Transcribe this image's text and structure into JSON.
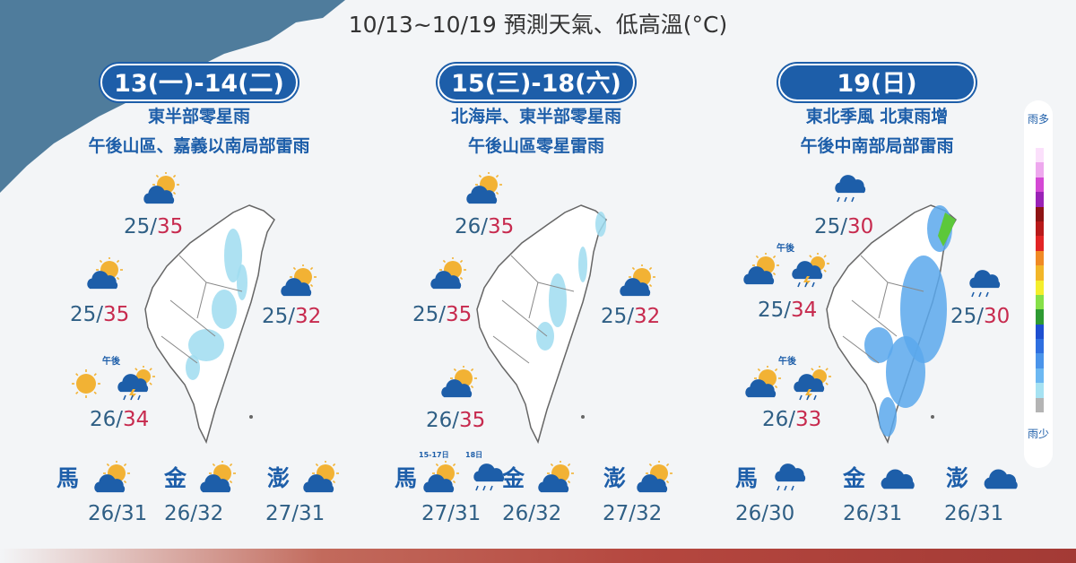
{
  "title": "10/13~10/19 預測天氣、低高溫(°C)",
  "colors": {
    "accent": "#1d5ea9",
    "low_temp": "#2f5f85",
    "high_temp": "#c72a4e"
  },
  "panels": [
    {
      "date": "13(一)-14(二)",
      "lines": [
        "東半部零星雨",
        "午後山區、嘉義以南局部雷雨"
      ],
      "spots": [
        {
          "icons": [
            "sun-cloud-icon"
          ],
          "low": "25",
          "high": "35"
        },
        {
          "icons": [
            "sun-cloud-icon"
          ],
          "low": "25",
          "high": "35"
        },
        {
          "icons": [
            "sun-cloud-icon"
          ],
          "low": "25",
          "high": "32"
        },
        {
          "icons": [
            "sun-icon",
            "thunderstorm-sun-icon"
          ],
          "note": "午後",
          "low": "26",
          "high": "34"
        }
      ],
      "islands": [
        {
          "name": "馬",
          "icons": [
            "sun-cloud-icon"
          ],
          "low": "26",
          "high": "31"
        },
        {
          "name": "金",
          "icons": [
            "sun-cloud-icon"
          ],
          "low": "26",
          "high": "32"
        },
        {
          "name": "澎",
          "icons": [
            "sun-cloud-icon"
          ],
          "low": "27",
          "high": "31"
        }
      ]
    },
    {
      "date": "15(三)-18(六)",
      "lines": [
        "北海岸、東半部零星雨",
        "午後山區零星雷雨"
      ],
      "spots": [
        {
          "icons": [
            "sun-cloud-icon"
          ],
          "low": "26",
          "high": "35"
        },
        {
          "icons": [
            "sun-cloud-icon"
          ],
          "low": "25",
          "high": "35"
        },
        {
          "icons": [
            "sun-cloud-icon"
          ],
          "low": "25",
          "high": "32"
        },
        {
          "icons": [
            "sun-cloud-icon"
          ],
          "low": "26",
          "high": "35"
        }
      ],
      "islands": [
        {
          "name": "馬",
          "icons": [
            "sun-cloud-icon",
            "rain-icon"
          ],
          "sublabels": [
            "15-17日",
            "18日"
          ],
          "low": "27",
          "high": "31"
        },
        {
          "name": "金",
          "icons": [
            "sun-cloud-icon"
          ],
          "low": "26",
          "high": "32"
        },
        {
          "name": "澎",
          "icons": [
            "sun-cloud-icon"
          ],
          "low": "27",
          "high": "32"
        }
      ]
    },
    {
      "date": "19(日)",
      "lines": [
        "東北季風 北東雨增",
        "午後中南部局部雷雨"
      ],
      "spots": [
        {
          "icons": [
            "rain-icon"
          ],
          "low": "25",
          "high": "30"
        },
        {
          "icons": [
            "cloud-sun-icon",
            "thunderstorm-sun-icon"
          ],
          "note": "午後",
          "low": "25",
          "high": "34"
        },
        {
          "icons": [
            "rain-icon"
          ],
          "low": "25",
          "high": "30"
        },
        {
          "icons": [
            "cloud-sun-icon",
            "thunderstorm-sun-icon"
          ],
          "note": "午後",
          "low": "26",
          "high": "33"
        }
      ],
      "islands": [
        {
          "name": "馬",
          "icons": [
            "rain-icon"
          ],
          "low": "26",
          "high": "30"
        },
        {
          "name": "金",
          "icons": [
            "cloud-icon"
          ],
          "low": "26",
          "high": "31"
        },
        {
          "name": "澎",
          "icons": [
            "cloud-icon"
          ],
          "low": "26",
          "high": "31"
        }
      ]
    }
  ],
  "legend": {
    "top_label": "雨多",
    "bottom_label": "雨少",
    "scale_colors": [
      "#fbe0fb",
      "#eea8ee",
      "#d448d4",
      "#9a22b6",
      "#8e1414",
      "#b81a1a",
      "#e22424",
      "#f08a24",
      "#f2b628",
      "#f4ee2c",
      "#86e048",
      "#2e9a32",
      "#1e4fd0",
      "#2f6fe0",
      "#4a94ea",
      "#6cb8f2",
      "#a6e2f2",
      "#b4b4b4"
    ]
  }
}
